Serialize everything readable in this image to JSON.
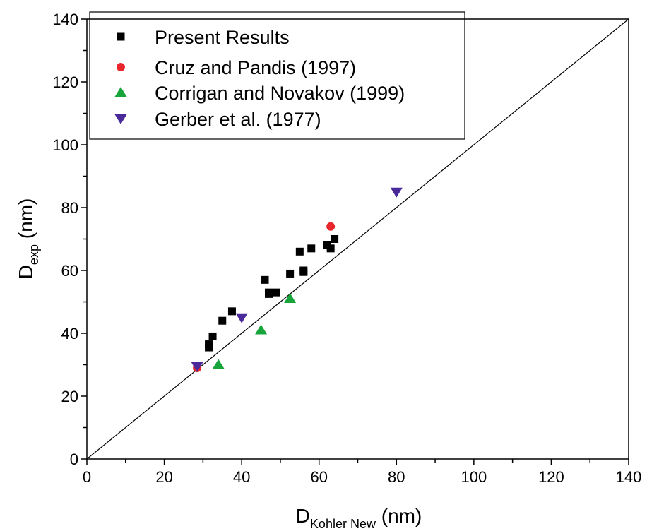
{
  "chart_data": {
    "type": "scatter",
    "xlabel": {
      "main": "D",
      "sub": "Kohler New",
      "unit": " (nm)"
    },
    "ylabel": {
      "main": "D",
      "sub": "exp",
      "unit": " (nm)"
    },
    "xlim": [
      0,
      140
    ],
    "ylim": [
      0,
      140
    ],
    "xticks": [
      "0",
      "20",
      "40",
      "60",
      "80",
      "100",
      "120",
      "140"
    ],
    "yticks": [
      "0",
      "20",
      "40",
      "60",
      "80",
      "100",
      "120",
      "140"
    ],
    "grid": false,
    "legend_position": "top-left",
    "reference_line": {
      "x": [
        0,
        140
      ],
      "y": [
        0,
        140
      ]
    },
    "series": [
      {
        "name": "Present Results",
        "marker": "square",
        "color": "#000000",
        "points": [
          [
            28.5,
            29.5
          ],
          [
            31.5,
            35.5
          ],
          [
            31.5,
            36.5
          ],
          [
            32.5,
            39.0
          ],
          [
            35.0,
            44.0
          ],
          [
            37.5,
            47.0
          ],
          [
            46.0,
            57.0
          ],
          [
            47.0,
            52.5
          ],
          [
            47.0,
            53.0
          ],
          [
            49.0,
            53.0
          ],
          [
            52.5,
            59.0
          ],
          [
            55.0,
            66.0
          ],
          [
            56.0,
            59.5
          ],
          [
            56.0,
            60.0
          ],
          [
            58.0,
            67.0
          ],
          [
            62.0,
            68.0
          ],
          [
            63.0,
            67.0
          ],
          [
            64.0,
            70.0
          ]
        ]
      },
      {
        "name": "Cruz and Pandis (1997)",
        "marker": "circle",
        "color": "#e8262c",
        "points": [
          [
            28.5,
            29.0
          ],
          [
            63.0,
            74.0
          ]
        ]
      },
      {
        "name": "Corrigan and Novakov (1999)",
        "marker": "triangle-up",
        "color": "#17a43b",
        "points": [
          [
            34.0,
            30.0
          ],
          [
            45.0,
            41.0
          ],
          [
            52.5,
            51.0
          ]
        ]
      },
      {
        "name": "Gerber et al. (1977)",
        "marker": "triangle-down",
        "color": "#4a2a9a",
        "points": [
          [
            28.5,
            29.5
          ],
          [
            40.0,
            45.0
          ],
          [
            80.0,
            85.0
          ]
        ]
      }
    ]
  }
}
